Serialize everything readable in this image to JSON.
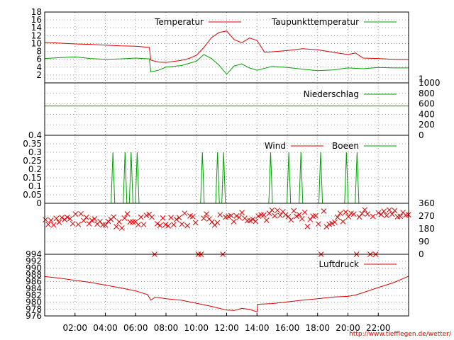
{
  "footer_url": "http://www.tiefflegen.de/wetter/",
  "x_ticks": [
    "02:00",
    "04:00",
    "06:00",
    "08:00",
    "10:00",
    "12:00",
    "14:00",
    "16:00",
    "18:00",
    "20:00",
    "22:00"
  ],
  "colors": {
    "red": "#dd0000",
    "green": "#00a000",
    "grid": "#a0a0a0"
  },
  "chart_data": [
    {
      "type": "line",
      "panel": "temperature",
      "ylim": [
        0,
        18
      ],
      "yticks_left": [
        "18",
        "16",
        "14",
        "12",
        "10",
        "8",
        "6",
        "4",
        "2"
      ],
      "yticks_right": [
        "1"
      ],
      "series": [
        {
          "name": "Temperatur",
          "color": "red",
          "x": [
            0,
            1,
            2,
            3,
            4,
            5,
            6,
            6.9,
            7,
            7.5,
            8,
            9,
            9.5,
            10,
            10.5,
            11,
            11.5,
            12,
            12.5,
            13,
            13.5,
            14,
            14.5,
            15,
            16,
            17,
            18,
            19,
            20,
            20.5,
            21,
            22,
            23,
            24
          ],
          "y": [
            10.3,
            10.1,
            9.9,
            9.8,
            9.6,
            9.4,
            9.3,
            9.0,
            5.8,
            5.3,
            5.2,
            5.7,
            6.2,
            7.0,
            9.0,
            11.5,
            12.8,
            13.2,
            11.0,
            10.2,
            11.4,
            10.8,
            7.8,
            7.9,
            8.2,
            8.7,
            8.4,
            7.8,
            7.2,
            7.6,
            6.3,
            6.2,
            6.0,
            6.0
          ]
        },
        {
          "name": "Taupunkttemperatur",
          "color": "green",
          "x": [
            0,
            1,
            2,
            3,
            4,
            5,
            6,
            6.9,
            7,
            7.5,
            8,
            9,
            10,
            10.5,
            11,
            11.5,
            12,
            12.5,
            13,
            13.5,
            14,
            15,
            16,
            17,
            18,
            19,
            20,
            21,
            22,
            23,
            24
          ],
          "y": [
            6.2,
            6.4,
            6.6,
            6.2,
            6.0,
            6.1,
            6.3,
            6.1,
            2.8,
            3.2,
            4.0,
            4.4,
            5.5,
            7.2,
            6.2,
            4.5,
            2.2,
            4.3,
            4.8,
            3.8,
            3.2,
            4.2,
            3.9,
            3.5,
            3.1,
            3.3,
            3.8,
            3.6,
            3.9,
            3.8,
            3.8
          ]
        }
      ]
    },
    {
      "type": "line",
      "panel": "precipitation",
      "ylim": [
        0,
        1000
      ],
      "yticks_right": [
        "1000",
        "800",
        "600",
        "400",
        "200",
        "0"
      ],
      "series": [
        {
          "name": "Niederschlag",
          "color": "green",
          "x": [
            0,
            24
          ],
          "y": [
            560,
            560
          ]
        }
      ]
    },
    {
      "type": "line",
      "panel": "wind",
      "ylim": [
        0,
        0.4
      ],
      "yticks_left": [
        "0.4",
        "0.35",
        "0.3",
        "0.25",
        "0.2",
        "0.15",
        "0.1",
        "0.05",
        "0"
      ],
      "series": [
        {
          "name": "Wind",
          "color": "red",
          "x": [
            0,
            24
          ],
          "y": [
            0,
            0
          ]
        },
        {
          "name": "Boeen",
          "color": "green",
          "gusts_at": [
            4.5,
            5.3,
            5.7,
            6.1,
            10.4,
            11.4,
            11.8,
            14.9,
            16.1,
            16.9,
            18.2,
            19.9,
            20.6
          ],
          "gust_value": 0.3
        }
      ]
    },
    {
      "type": "scatter",
      "panel": "wind_direction",
      "ylim": [
        0,
        360
      ],
      "yticks_right": [
        "360",
        "270",
        "180",
        "90",
        "0"
      ]
    },
    {
      "type": "line",
      "panel": "pressure",
      "ylim": [
        976,
        994
      ],
      "yticks_left": [
        "994",
        "992",
        "990",
        "988",
        "986",
        "984",
        "982",
        "980",
        "978",
        "976"
      ],
      "series": [
        {
          "name": "Luftdruck",
          "color": "red",
          "x": [
            0,
            1,
            2,
            3,
            4,
            5,
            6,
            6.8,
            7,
            7.3,
            8,
            9,
            10,
            11,
            12,
            12.5,
            13,
            13.5,
            14,
            14.05,
            15,
            16,
            17,
            18,
            19,
            20,
            20.5,
            21,
            22,
            23,
            24
          ],
          "y": [
            987.5,
            987.0,
            986.4,
            985.8,
            985.0,
            984.2,
            983.3,
            982.2,
            980.6,
            981.5,
            981.0,
            980.6,
            979.7,
            978.8,
            977.7,
            977.6,
            978.2,
            977.9,
            977.2,
            979.4,
            979.6,
            980.1,
            980.6,
            981.0,
            981.5,
            981.7,
            982.1,
            982.8,
            984.3,
            985.7,
            987.6
          ]
        }
      ]
    }
  ]
}
